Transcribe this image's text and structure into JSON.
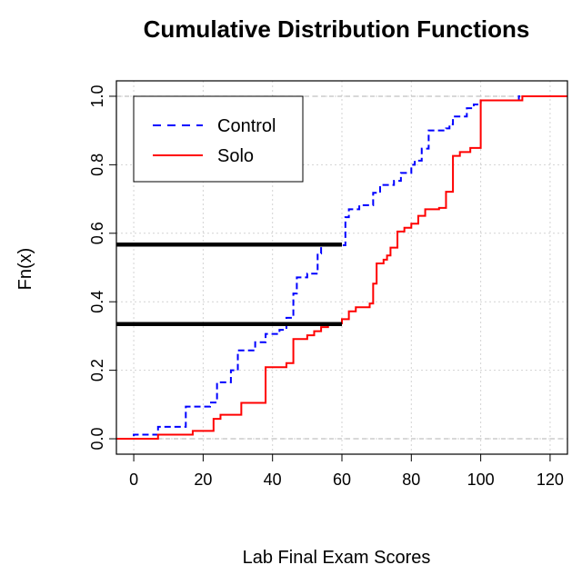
{
  "chart_data": {
    "type": "line",
    "title": "Cumulative Distribution Functions",
    "xlabel": "Lab Final Exam Scores",
    "ylabel": "Fn(x)",
    "xlim": [
      -5,
      125
    ],
    "ylim": [
      0,
      1
    ],
    "xticks": [
      0,
      20,
      40,
      60,
      80,
      100,
      120
    ],
    "yticks": [
      0.0,
      0.2,
      0.4,
      0.6,
      0.8,
      1.0
    ],
    "xtick_labels": [
      "0",
      "20",
      "40",
      "60",
      "80",
      "100",
      "120"
    ],
    "ytick_labels": [
      "0.0",
      "0.2",
      "0.4",
      "0.6",
      "0.8",
      "1.0"
    ],
    "grid": true,
    "legend_position": "top-left",
    "series": [
      {
        "name": "Control",
        "color": "#0000ff",
        "dash": "dashed",
        "steps": [
          [
            -5,
            0.0
          ],
          [
            0,
            0.012
          ],
          [
            7,
            0.035
          ],
          [
            15,
            0.094
          ],
          [
            22,
            0.106
          ],
          [
            24,
            0.165
          ],
          [
            28,
            0.2
          ],
          [
            30,
            0.258
          ],
          [
            35,
            0.282
          ],
          [
            38,
            0.306
          ],
          [
            42,
            0.318
          ],
          [
            44,
            0.353
          ],
          [
            46,
            0.424
          ],
          [
            47,
            0.471
          ],
          [
            50,
            0.482
          ],
          [
            53,
            0.541
          ],
          [
            54,
            0.565
          ],
          [
            58,
            0.565
          ],
          [
            61,
            0.647
          ],
          [
            62,
            0.67
          ],
          [
            65,
            0.682
          ],
          [
            69,
            0.718
          ],
          [
            71,
            0.741
          ],
          [
            75,
            0.753
          ],
          [
            77,
            0.776
          ],
          [
            80,
            0.8
          ],
          [
            81,
            0.812
          ],
          [
            83,
            0.847
          ],
          [
            85,
            0.9
          ],
          [
            90,
            0.906
          ],
          [
            91,
            0.918
          ],
          [
            92,
            0.941
          ],
          [
            96,
            0.965
          ],
          [
            98,
            0.976
          ],
          [
            100,
            0.988
          ],
          [
            111,
            1.0
          ],
          [
            125,
            1.0
          ]
        ]
      },
      {
        "name": "Solo",
        "color": "#ff0000",
        "dash": "solid",
        "steps": [
          [
            -5,
            0.0
          ],
          [
            7,
            0.012
          ],
          [
            17,
            0.023
          ],
          [
            23,
            0.058
          ],
          [
            25,
            0.07
          ],
          [
            31,
            0.105
          ],
          [
            38,
            0.209
          ],
          [
            44,
            0.221
          ],
          [
            46,
            0.291
          ],
          [
            50,
            0.302
          ],
          [
            52,
            0.314
          ],
          [
            54,
            0.326
          ],
          [
            56,
            0.337
          ],
          [
            60,
            0.349
          ],
          [
            62,
            0.372
          ],
          [
            64,
            0.384
          ],
          [
            68,
            0.395
          ],
          [
            69,
            0.453
          ],
          [
            70,
            0.512
          ],
          [
            72,
            0.523
          ],
          [
            73,
            0.535
          ],
          [
            74,
            0.558
          ],
          [
            76,
            0.605
          ],
          [
            78,
            0.616
          ],
          [
            80,
            0.628
          ],
          [
            82,
            0.651
          ],
          [
            84,
            0.67
          ],
          [
            88,
            0.674
          ],
          [
            90,
            0.721
          ],
          [
            92,
            0.826
          ],
          [
            94,
            0.837
          ],
          [
            97,
            0.849
          ],
          [
            100,
            0.988
          ],
          [
            112,
            1.0
          ],
          [
            125,
            1.0
          ]
        ]
      }
    ],
    "reference_lines": [
      {
        "x0": -5,
        "x1": 60,
        "y": 0.567,
        "color": "#000000"
      },
      {
        "x0": -5,
        "x1": 60,
        "y": 0.335,
        "color": "#000000"
      }
    ],
    "hlines_dashed": [
      {
        "y": 0.0,
        "color": "#c0c0c0"
      },
      {
        "y": 1.0,
        "color": "#c0c0c0"
      }
    ]
  }
}
